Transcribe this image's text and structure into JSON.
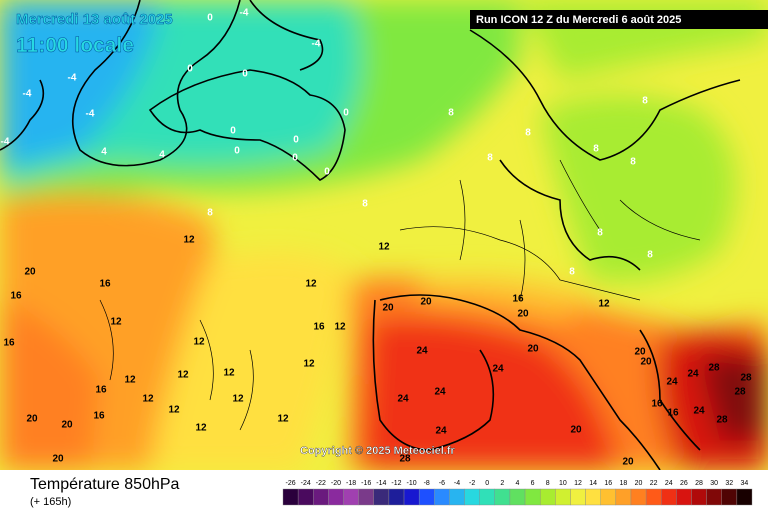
{
  "header": {
    "valid_date": "Mercredi 13 août 2025",
    "valid_time": "11:00 locale",
    "run": "Run ICON 12 Z du Mercredi 6 août 2025",
    "copyright": "Copyright © 2025 Meteociel.fr"
  },
  "footer": {
    "title": "Température 850hPa",
    "lead": "(+ 165h)"
  },
  "legend": {
    "ticks": [
      -26,
      -24,
      -22,
      -20,
      -18,
      -16,
      -14,
      -12,
      -10,
      -8,
      -6,
      -4,
      -2,
      0,
      2,
      4,
      6,
      8,
      10,
      12,
      14,
      16,
      18,
      20,
      22,
      24,
      26,
      28,
      30,
      32,
      34
    ],
    "colors": [
      "#2a003c",
      "#4a0a5e",
      "#6a1a7e",
      "#8a2a9e",
      "#a040b0",
      "#7a3a8a",
      "#3a2a7a",
      "#1e1e9a",
      "#1818d0",
      "#1e50ff",
      "#2a8aff",
      "#28b4f0",
      "#28d8e0",
      "#30e0b8",
      "#40e090",
      "#60e060",
      "#80e840",
      "#a8ec30",
      "#d0f030",
      "#f0f040",
      "#ffe040",
      "#ffc030",
      "#ffa028",
      "#ff8020",
      "#ff5a18",
      "#f03014",
      "#d81410",
      "#b00a0a",
      "#800808",
      "#500404",
      "#180000"
    ]
  },
  "map_labels": [
    0,
    -4,
    0,
    0,
    0,
    0,
    0,
    0,
    0,
    0,
    -4,
    -4,
    -4,
    -4,
    -4,
    4,
    4,
    8,
    8,
    8,
    8,
    8,
    8,
    8,
    8,
    8,
    8,
    8,
    12,
    12,
    12,
    12,
    12,
    12,
    12,
    12,
    12,
    12,
    12,
    12,
    12,
    12,
    12,
    12,
    20,
    16,
    16,
    16,
    16,
    16,
    16,
    16,
    20,
    20,
    20,
    20,
    20,
    20,
    20,
    20,
    20,
    20,
    24,
    24,
    24,
    24,
    24,
    24,
    24,
    28,
    28,
    28,
    28,
    28,
    16,
    16,
    24,
    20
  ]
}
